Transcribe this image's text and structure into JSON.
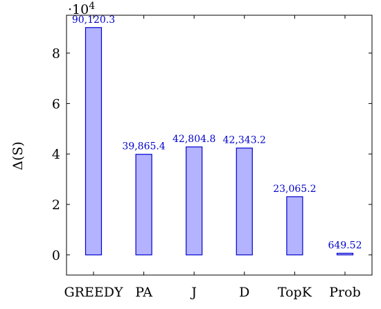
{
  "chart_data": {
    "type": "bar",
    "categories": [
      "GREEDY",
      "PA",
      "J",
      "D",
      "TopK",
      "Prob"
    ],
    "values": [
      90120.3,
      39865.4,
      42804.8,
      42343.2,
      23065.2,
      649.52
    ],
    "data_labels": [
      "90,120.3",
      "39,865.4",
      "42,804.8",
      "42,343.2",
      "23,065.2",
      "649.52"
    ],
    "ylabel": "Δ(S)",
    "scale_label": "·10",
    "scale_exponent": "4",
    "ylim": [
      -8000,
      95000
    ],
    "yticks": [
      0,
      20000,
      40000,
      60000,
      80000
    ],
    "ytick_labels": [
      "0",
      "2",
      "4",
      "6",
      "8"
    ],
    "grid": false,
    "bar_fill": "#b3b3ff",
    "bar_stroke": "#0000cc",
    "label_color": "#0000cc"
  }
}
